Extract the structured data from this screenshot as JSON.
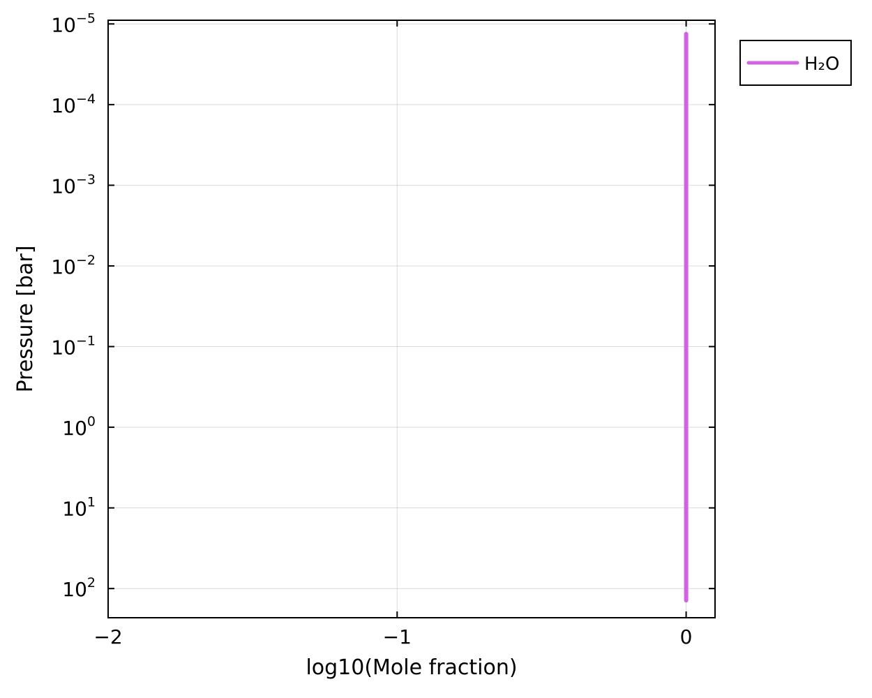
{
  "chart_data": {
    "type": "line",
    "xlabel": "log10(Mole fraction)",
    "ylabel": "Pressure [bar]",
    "x_scale": "linear",
    "y_scale": "log",
    "y_inverted": true,
    "xlim": [
      -2,
      0.1
    ],
    "ylim": [
      9e-06,
      230
    ],
    "x_ticks": [
      {
        "value": -2,
        "label": "−2"
      },
      {
        "value": -1,
        "label": "−1"
      },
      {
        "value": 0,
        "label": "0"
      }
    ],
    "y_ticks": [
      {
        "value": 1e-05,
        "base": "10",
        "exp": "−5"
      },
      {
        "value": 0.0001,
        "base": "10",
        "exp": "−4"
      },
      {
        "value": 0.001,
        "base": "10",
        "exp": "−3"
      },
      {
        "value": 0.01,
        "base": "10",
        "exp": "−2"
      },
      {
        "value": 0.1,
        "base": "10",
        "exp": "−1"
      },
      {
        "value": 1,
        "base": "10",
        "exp": "0"
      },
      {
        "value": 10,
        "base": "10",
        "exp": "1"
      },
      {
        "value": 100,
        "base": "10",
        "exp": "2"
      }
    ],
    "grid": true,
    "legend_position": "outside-top-right",
    "series": [
      {
        "name": "H₂O",
        "color": "#d162e0",
        "x": [
          0,
          0
        ],
        "y": [
          1.33e-05,
          140
        ]
      }
    ]
  }
}
